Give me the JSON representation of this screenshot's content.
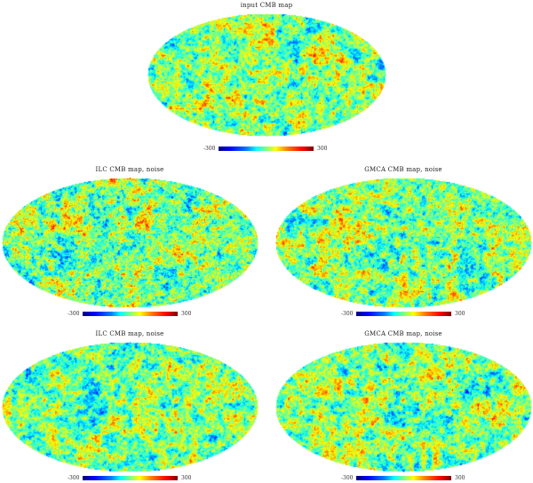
{
  "panels": [
    {
      "id": "input",
      "title": "input CMB map",
      "cbar_min": "-300",
      "cbar_max": "300",
      "seed": 11,
      "fine": 0.45
    },
    {
      "id": "a",
      "title": "ILC CMB map, noise",
      "cbar_min": "-300",
      "cbar_max": "300",
      "seed": 23,
      "fine": 0.95
    },
    {
      "id": "b",
      "title": "GMCA CMB map, noise",
      "cbar_min": "-300",
      "cbar_max": "300",
      "seed": 37,
      "fine": 0.75
    },
    {
      "id": "c",
      "title": "ILC CMB map, noise",
      "cbar_min": "-300",
      "cbar_max": "300",
      "seed": 41,
      "fine": 0.55
    },
    {
      "id": "d",
      "title": "GMCA CMB map, noise",
      "cbar_min": "-300",
      "cbar_max": "300",
      "seed": 53,
      "fine": 0.6
    }
  ],
  "colormap": [
    "#00007f",
    "#0000ff",
    "#007fff",
    "#00ffff",
    "#7fff7f",
    "#ffff00",
    "#ff7f00",
    "#ff0000",
    "#7f0000"
  ]
}
